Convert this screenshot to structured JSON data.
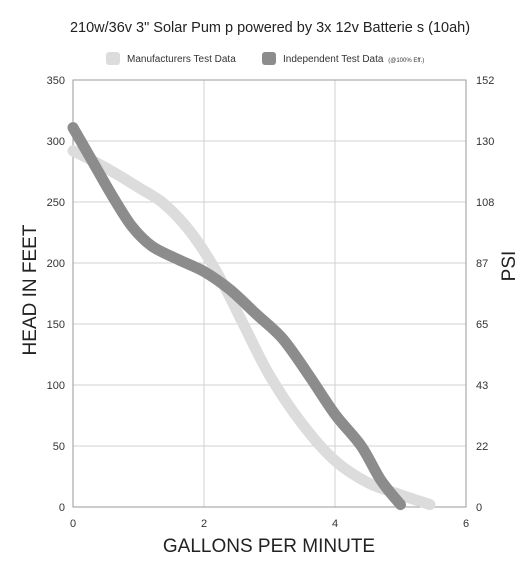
{
  "chart_data": {
    "type": "line",
    "title": "210w/36v 3\" Solar Pum p powered by  3x 12v Batterie s (10ah)",
    "xlabel": "GALLONS PER MINUTE",
    "ylabel": "HEAD IN FEET",
    "y2label": "PSI",
    "xlim": [
      0,
      6
    ],
    "ylim": [
      0,
      350
    ],
    "x_ticks": [
      "0",
      "2",
      "4",
      "6"
    ],
    "x_tick_values": [
      0,
      2,
      4,
      6
    ],
    "y_ticks": [
      "0",
      "50",
      "100",
      "150",
      "200",
      "250",
      "300",
      "350"
    ],
    "y_tick_values": [
      0,
      50,
      100,
      150,
      200,
      250,
      300,
      350
    ],
    "y2_ticks": [
      "0",
      "22",
      "43",
      "65",
      "87",
      "108",
      "130",
      "152"
    ],
    "grid": true,
    "legend_position": "top",
    "series": [
      {
        "name": "Manufacturers Test Data",
        "name_suffix": "",
        "color": "#dcdcdc",
        "x": [
          0,
          0.5,
          1.0,
          1.4,
          1.8,
          2.2,
          2.6,
          3.0,
          3.5,
          4.0,
          4.5,
          5.0,
          5.45
        ],
        "y": [
          292,
          278,
          262,
          248,
          225,
          192,
          150,
          108,
          68,
          38,
          20,
          10,
          2
        ]
      },
      {
        "name": "Independent Test Data",
        "name_suffix": "(@100% Eff.)",
        "color": "#8c8c8c",
        "x": [
          0,
          0.3,
          0.6,
          0.9,
          1.2,
          1.6,
          2.0,
          2.4,
          2.8,
          3.2,
          3.6,
          4.0,
          4.4,
          4.7,
          5.0
        ],
        "y": [
          311,
          283,
          255,
          230,
          214,
          203,
          193,
          178,
          158,
          138,
          108,
          76,
          50,
          22,
          2
        ]
      }
    ]
  }
}
